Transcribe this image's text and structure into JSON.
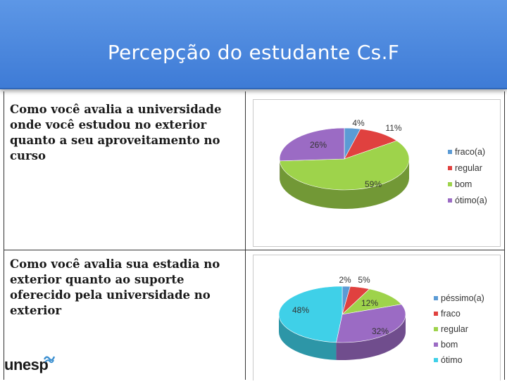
{
  "slide": {
    "title": "Percepção do estudante Cs.F"
  },
  "questions": [
    "Como você avalia a universidade onde você estudou no exterior quanto a seu aproveitamento no curso",
    "Como você avalia sua estadia no exterior quanto ao suporte oferecido pela universidade no exterior"
  ],
  "logo": {
    "text": "unesp"
  },
  "chart_data": [
    {
      "type": "pie",
      "title": "",
      "categories": [
        "fraco(a)",
        "regular",
        "bom",
        "ótimo(a)"
      ],
      "values": [
        4,
        11,
        59,
        26
      ],
      "labels": [
        "4%",
        "11%",
        "59%",
        "26%"
      ],
      "colors": [
        "#5b9bd5",
        "#e0413f",
        "#9ed34b",
        "#9b6bc4"
      ],
      "legend": "right"
    },
    {
      "type": "pie",
      "title": "",
      "categories": [
        "péssimo(a)",
        "fraco",
        "regular",
        "bom",
        "ótimo"
      ],
      "values": [
        2,
        5,
        12,
        32,
        48
      ],
      "labels": [
        "2%",
        "5%",
        "12%",
        "32%",
        "48%"
      ],
      "colors": [
        "#5b9bd5",
        "#e0413f",
        "#9ed34b",
        "#9b6bc4",
        "#3fd0e8"
      ],
      "legend": "right"
    }
  ]
}
